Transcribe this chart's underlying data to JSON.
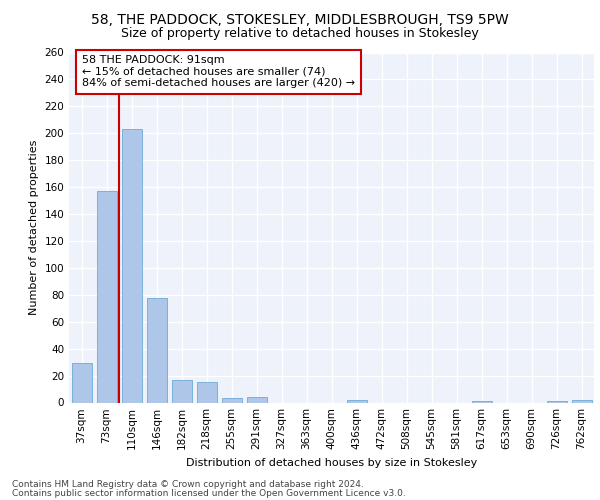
{
  "title1": "58, THE PADDOCK, STOKESLEY, MIDDLESBROUGH, TS9 5PW",
  "title2": "Size of property relative to detached houses in Stokesley",
  "xlabel": "Distribution of detached houses by size in Stokesley",
  "ylabel": "Number of detached properties",
  "bar_color": "#aec6e8",
  "bar_edge_color": "#5a9fd4",
  "categories": [
    "37sqm",
    "73sqm",
    "110sqm",
    "146sqm",
    "182sqm",
    "218sqm",
    "255sqm",
    "291sqm",
    "327sqm",
    "363sqm",
    "400sqm",
    "436sqm",
    "472sqm",
    "508sqm",
    "545sqm",
    "581sqm",
    "617sqm",
    "653sqm",
    "690sqm",
    "726sqm",
    "762sqm"
  ],
  "values": [
    29,
    157,
    203,
    78,
    17,
    15,
    3,
    4,
    0,
    0,
    0,
    2,
    0,
    0,
    0,
    0,
    1,
    0,
    0,
    1,
    2
  ],
  "ylim": [
    0,
    260
  ],
  "yticks": [
    0,
    20,
    40,
    60,
    80,
    100,
    120,
    140,
    160,
    180,
    200,
    220,
    240,
    260
  ],
  "annotation_text": "58 THE PADDOCK: 91sqm\n← 15% of detached houses are smaller (74)\n84% of semi-detached houses are larger (420) →",
  "annotation_box_color": "#ffffff",
  "annotation_box_edge": "#cc0000",
  "red_line_color": "#cc0000",
  "footer_line1": "Contains HM Land Registry data © Crown copyright and database right 2024.",
  "footer_line2": "Contains public sector information licensed under the Open Government Licence v3.0.",
  "background_color": "#eef2fa",
  "grid_color": "#ffffff",
  "title1_fontsize": 10,
  "title2_fontsize": 9,
  "axis_label_fontsize": 8,
  "tick_fontsize": 7.5,
  "annotation_fontsize": 8,
  "footer_fontsize": 6.5
}
